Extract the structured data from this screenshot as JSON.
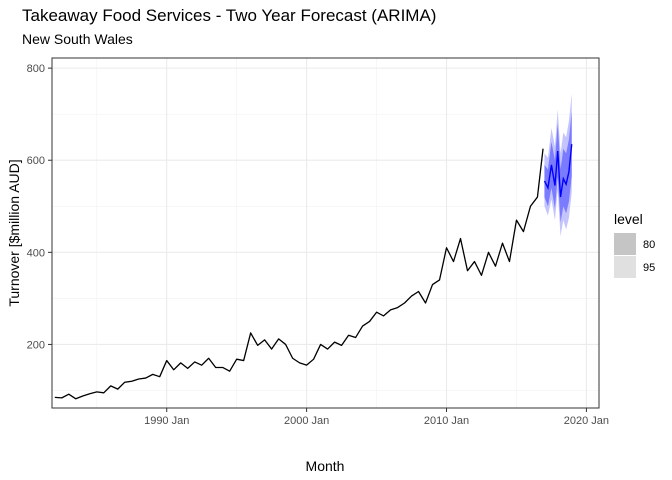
{
  "chart_data": {
    "type": "line",
    "title": "Takeaway Food Services - Two Year Forecast (ARIMA)",
    "subtitle": "New South Wales",
    "xlabel": "Month",
    "ylabel": "Turnover [$million AUD]",
    "xlim": [
      1981.8,
      2020.9
    ],
    "ylim": [
      62,
      822
    ],
    "x_ticks": [
      {
        "value": 1990,
        "label": "1990 Jan"
      },
      {
        "value": 2000,
        "label": "2000 Jan"
      },
      {
        "value": 2010,
        "label": "2010 Jan"
      },
      {
        "value": 2020,
        "label": "2020 Jan"
      }
    ],
    "y_ticks": [
      {
        "value": 200,
        "label": "200"
      },
      {
        "value": 400,
        "label": "400"
      },
      {
        "value": 600,
        "label": "600"
      },
      {
        "value": 800,
        "label": "800"
      }
    ],
    "grid": true,
    "legend": {
      "title": "level",
      "position": "right",
      "entries": [
        "80",
        "95"
      ]
    },
    "colors": {
      "historical": "#000000",
      "forecast": "#0000ff",
      "band80": "#7b7bff",
      "band95": "#c4c4ff"
    },
    "series": [
      {
        "kind": "historical",
        "x": [
          1982.0,
          1982.5,
          1983.0,
          1983.5,
          1984.0,
          1984.5,
          1985.0,
          1985.5,
          1986.0,
          1986.5,
          1987.0,
          1987.5,
          1988.0,
          1988.5,
          1989.0,
          1989.5,
          1990.0,
          1990.5,
          1991.0,
          1991.5,
          1992.0,
          1992.5,
          1993.0,
          1993.5,
          1994.0,
          1994.5,
          1995.0,
          1995.5,
          1996.0,
          1996.5,
          1997.0,
          1997.5,
          1998.0,
          1998.5,
          1999.0,
          1999.5,
          2000.0,
          2000.5,
          2001.0,
          2001.5,
          2002.0,
          2002.5,
          2003.0,
          2003.5,
          2004.0,
          2004.5,
          2005.0,
          2005.5,
          2006.0,
          2006.5,
          2007.0,
          2007.5,
          2008.0,
          2008.5,
          2009.0,
          2009.5,
          2010.0,
          2010.5,
          2011.0,
          2011.5,
          2012.0,
          2012.5,
          2013.0,
          2013.5,
          2014.0,
          2014.5,
          2015.0,
          2015.5,
          2016.0,
          2016.5,
          2016.9
        ],
        "y": [
          85,
          84,
          92,
          82,
          88,
          93,
          97,
          95,
          110,
          103,
          118,
          120,
          125,
          127,
          135,
          130,
          165,
          145,
          160,
          148,
          162,
          155,
          170,
          150,
          150,
          142,
          168,
          165,
          225,
          198,
          210,
          190,
          212,
          200,
          170,
          160,
          155,
          168,
          200,
          190,
          205,
          198,
          220,
          215,
          240,
          250,
          270,
          262,
          275,
          280,
          290,
          305,
          315,
          290,
          330,
          340,
          410,
          380,
          430,
          360,
          380,
          350,
          400,
          370,
          420,
          380,
          470,
          445,
          500,
          520,
          625
        ]
      },
      {
        "kind": "forecast",
        "name": "forecast",
        "x": [
          2017.0,
          2017.25,
          2017.5,
          2017.75,
          2017.95,
          2018.15,
          2018.35,
          2018.55,
          2018.75,
          2018.95
        ],
        "y": [
          555,
          540,
          590,
          545,
          620,
          520,
          560,
          548,
          575,
          635
        ],
        "lo80": [
          520,
          500,
          540,
          495,
          565,
          465,
          500,
          485,
          510,
          565
        ],
        "hi80": [
          590,
          580,
          640,
          600,
          680,
          580,
          625,
          615,
          645,
          705
        ],
        "lo95": [
          500,
          480,
          515,
          470,
          535,
          435,
          470,
          450,
          475,
          530
        ],
        "hi95": [
          615,
          605,
          670,
          630,
          710,
          615,
          660,
          650,
          685,
          745
        ]
      }
    ]
  }
}
